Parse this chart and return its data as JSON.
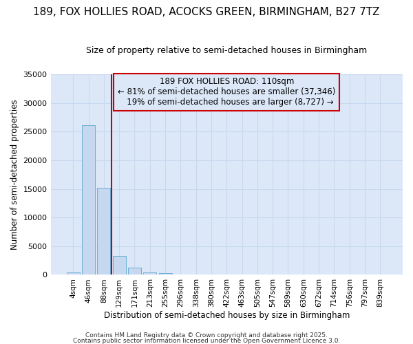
{
  "title": "189, FOX HOLLIES ROAD, ACOCKS GREEN, BIRMINGHAM, B27 7TZ",
  "subtitle": "Size of property relative to semi-detached houses in Birmingham",
  "xlabel": "Distribution of semi-detached houses by size in Birmingham",
  "ylabel": "Number of semi-detached properties",
  "categories": [
    "4sqm",
    "46sqm",
    "88sqm",
    "129sqm",
    "171sqm",
    "213sqm",
    "255sqm",
    "296sqm",
    "338sqm",
    "380sqm",
    "422sqm",
    "463sqm",
    "505sqm",
    "547sqm",
    "589sqm",
    "630sqm",
    "672sqm",
    "714sqm",
    "756sqm",
    "797sqm",
    "839sqm"
  ],
  "bar_values": [
    400,
    26100,
    15200,
    3300,
    1200,
    450,
    280,
    0,
    0,
    0,
    0,
    0,
    0,
    0,
    0,
    0,
    0,
    0,
    0,
    0,
    0
  ],
  "bar_color": "#c5d8f0",
  "bar_edge_color": "#6baed6",
  "pct_smaller": 81,
  "count_smaller": 37346,
  "pct_larger": 19,
  "count_larger": 8727,
  "vline_color": "#cc0000",
  "ylim": [
    0,
    35000
  ],
  "yticks": [
    0,
    5000,
    10000,
    15000,
    20000,
    25000,
    30000,
    35000
  ],
  "grid_color": "#c8d8ee",
  "bg_color": "#dce8f8",
  "plot_bg_color": "#dce8f8",
  "white_bg": "#ffffff",
  "footer1": "Contains HM Land Registry data © Crown copyright and database right 2025.",
  "footer2": "Contains public sector information licensed under the Open Government Licence 3.0.",
  "title_fontsize": 11,
  "subtitle_fontsize": 9,
  "ann_line1": "189 FOX HOLLIES ROAD: 110sqm",
  "ann_line2": "← 81% of semi-detached houses are smaller (37,346)",
  "ann_line3": "19% of semi-detached houses are larger (8,727) →"
}
